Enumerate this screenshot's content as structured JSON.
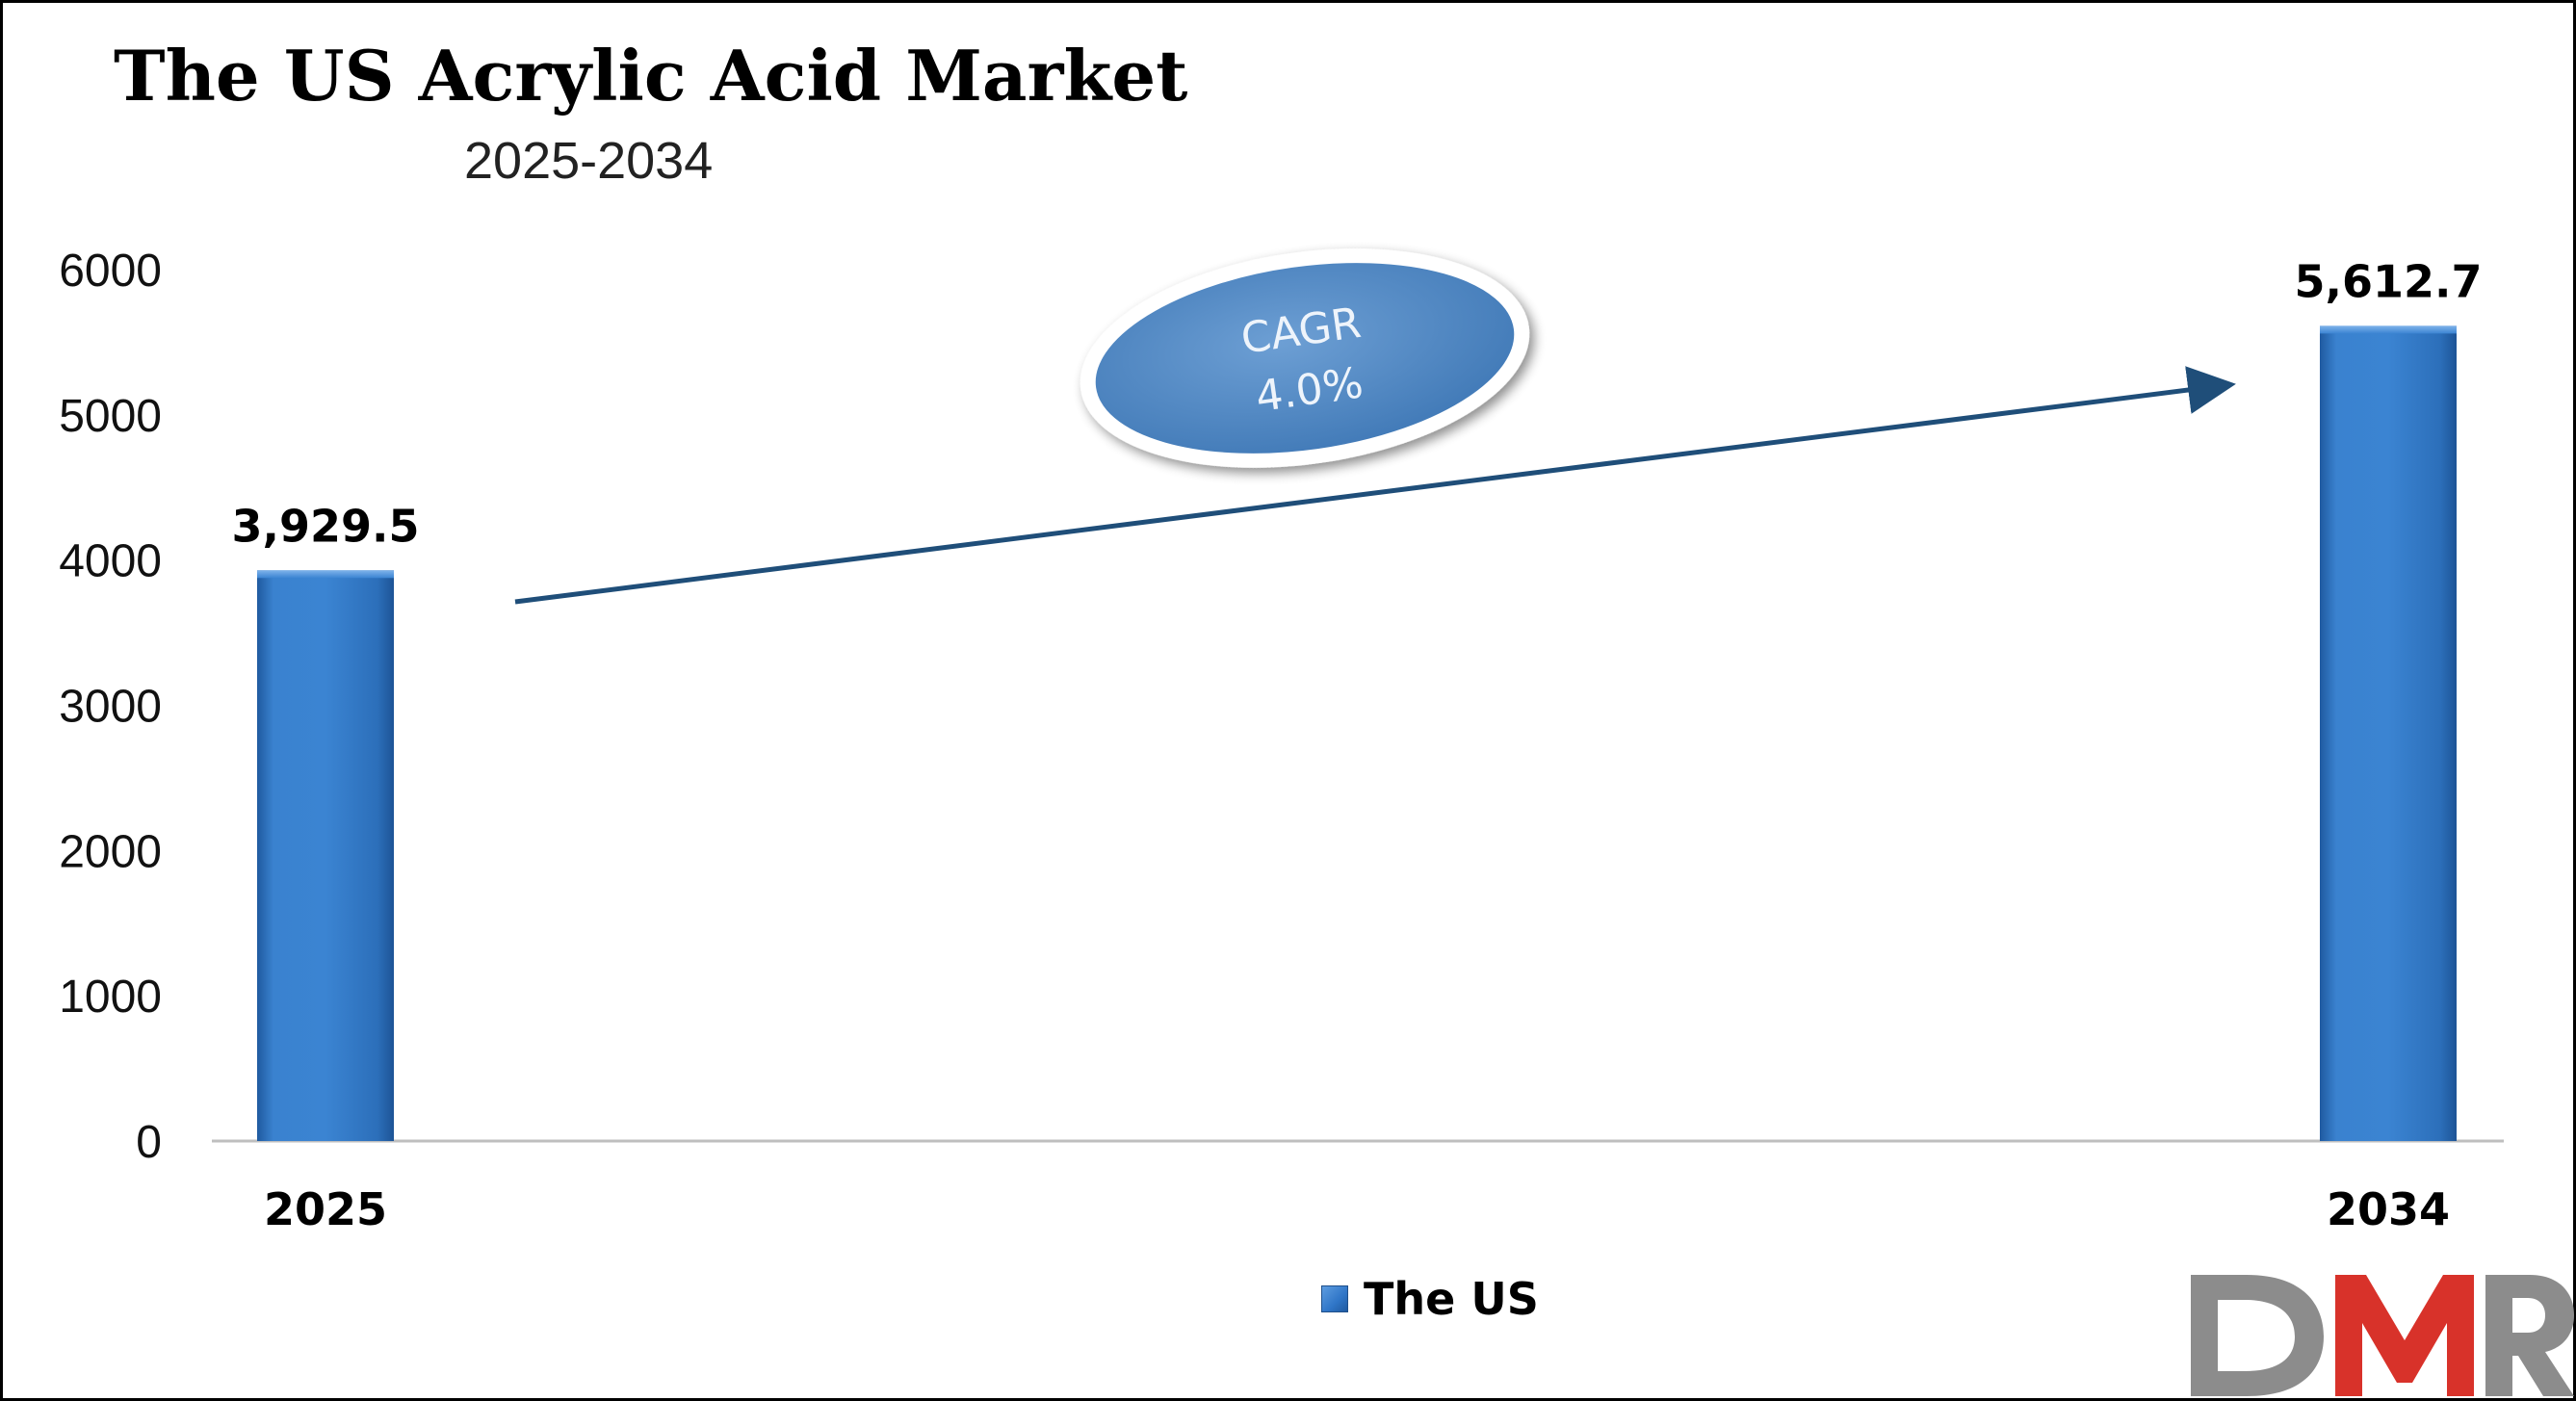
{
  "chart_data": {
    "type": "bar",
    "title": "The US Acrylic Acid Market",
    "subtitle": "2025-2034",
    "categories": [
      "2025",
      "2034"
    ],
    "series": [
      {
        "name": "The US",
        "values": [
          3929.5,
          5612.7
        ]
      }
    ],
    "data_labels": [
      "3,929.5",
      "5,612.7"
    ],
    "ylim": [
      0,
      6000
    ],
    "yticks": [
      0,
      1000,
      2000,
      3000,
      4000,
      5000,
      6000
    ],
    "xlabel": "",
    "ylabel": "",
    "grid": false,
    "legend": {
      "position": "bottom-center",
      "entries": [
        "The US"
      ]
    },
    "annotation": {
      "label": "CAGR",
      "value": "4.0%"
    },
    "colors": {
      "bar": "#2f7cc9",
      "bar_dark": "#1f5aa0",
      "arrow": "#1f4e79",
      "cagr_fill": "#4a86c5",
      "axis": "#bfbfbf"
    }
  },
  "logo": {
    "text": "DMR",
    "colors": {
      "d": "#8c8c8c",
      "m": "#d8322a",
      "r": "#8c8c8c"
    }
  }
}
